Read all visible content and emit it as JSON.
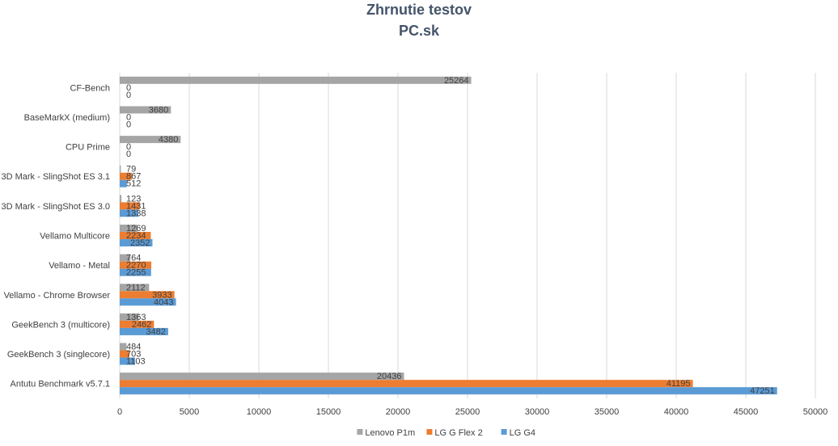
{
  "chart_data": {
    "type": "bar",
    "orientation": "horizontal",
    "title": "Zhrnutie testov",
    "subtitle": "PC.sk",
    "categories": [
      "CF-Bench",
      "BaseMarkX (medium)",
      "CPU Prime",
      "3D Mark - SlingShot ES 3.1",
      "3D Mark - SlingShot ES 3.0",
      "Vellamo Multicore",
      "Vellamo - Metal",
      "Vellamo - Chrome Browser",
      "GeekBench 3 (multicore)",
      "GeekBench 3 (singlecore)",
      "Antutu Benchmark v5.7.1"
    ],
    "series": [
      {
        "name": "Lenovo P1m",
        "color": "#a5a5a5",
        "values": [
          25264,
          3680,
          4380,
          79,
          123,
          1269,
          764,
          2112,
          1363,
          484,
          20436
        ],
        "labels": [
          "25264",
          "3680",
          "4380",
          "79",
          "123",
          "1269",
          "764",
          "2112",
          "1363",
          "484",
          "20436"
        ]
      },
      {
        "name": "LG G Flex 2",
        "color": "#ed7d31",
        "values": [
          0,
          0,
          0,
          867,
          1431,
          2234,
          2270,
          3933,
          2462,
          703,
          41195
        ],
        "labels": [
          "0",
          "0",
          "0",
          "867",
          "1431",
          "2234",
          "2270",
          "3933",
          "2462",
          "703",
          "41195"
        ]
      },
      {
        "name": "LG G4",
        "color": "#5b9bd5",
        "values": [
          0,
          0,
          0,
          512,
          1338,
          2352,
          2255,
          4043,
          3482,
          1103,
          47251
        ],
        "labels": [
          "0",
          "0",
          "0",
          "512",
          "1338",
          "2352",
          "2255",
          "4043",
          "3482",
          "1103",
          "47251"
        ]
      }
    ],
    "xlim": [
      0,
      50000
    ],
    "xticks": [
      "0",
      "5000",
      "10000",
      "15000",
      "20000",
      "25000",
      "30000",
      "35000",
      "40000",
      "45000",
      "50000"
    ],
    "xtick_values": [
      0,
      5000,
      10000,
      15000,
      20000,
      25000,
      30000,
      35000,
      40000,
      45000,
      50000
    ],
    "grid": true,
    "legend_position": "bottom"
  }
}
